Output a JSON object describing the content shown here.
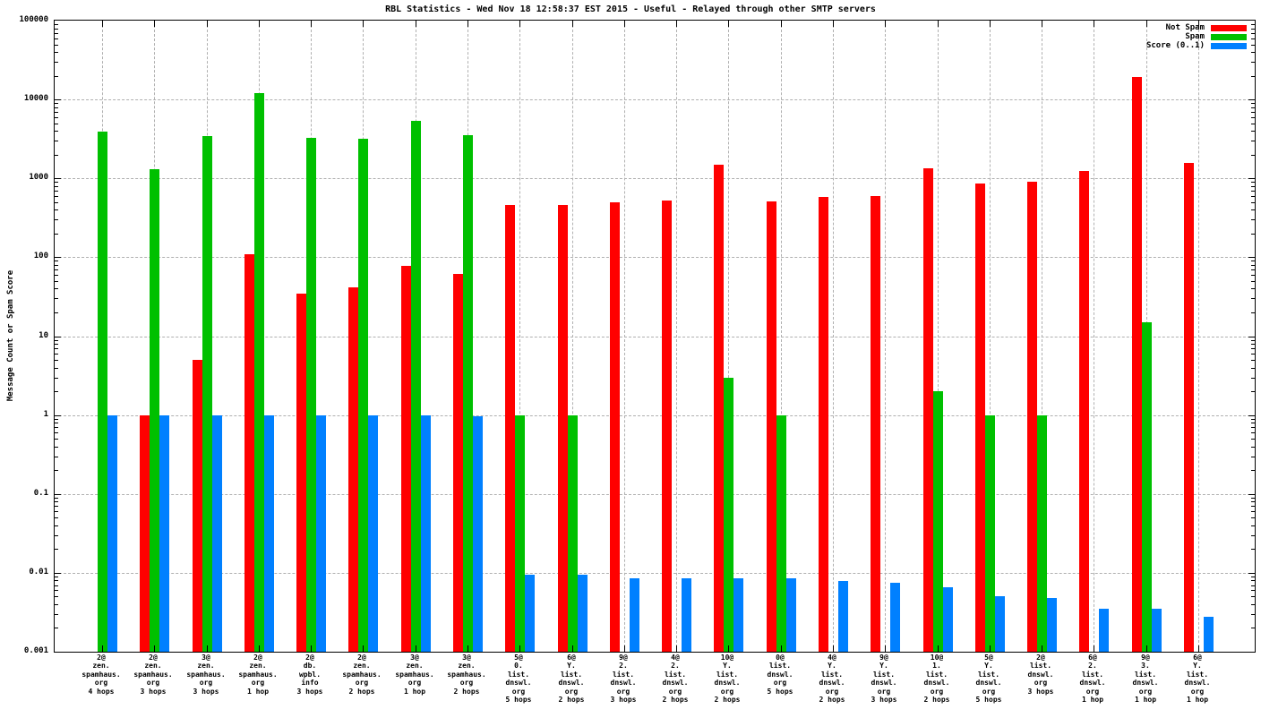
{
  "title": "RBL Statistics - Wed Nov 18 12:58:37 EST 2015 - Useful - Relayed through other SMTP servers",
  "colors": {
    "not_spam": "#ff0000",
    "spam": "#00c000",
    "score": "#0080ff",
    "grid": "#b0b0b0",
    "frame": "#000000",
    "background": "#ffffff"
  },
  "chart_data": {
    "type": "bar",
    "title": "RBL Statistics - Wed Nov 18 12:58:37 EST 2015 - Useful - Relayed through other SMTP servers",
    "xlabel": "",
    "ylabel": "Message Count or Spam Score",
    "y_scale": "log",
    "ylim": [
      0.001,
      100000
    ],
    "y_tick_labels": [
      "100000",
      "10000",
      "1000",
      "100",
      "10",
      "1",
      "0.1",
      "0.01",
      "0.001"
    ],
    "grid": true,
    "legend_position": "top-right",
    "categories": [
      [
        "2@",
        "zen.",
        "spamhaus.",
        "org",
        "4 hops"
      ],
      [
        "2@",
        "zen.",
        "spamhaus.",
        "org",
        "3 hops"
      ],
      [
        "3@",
        "zen.",
        "spamhaus.",
        "org",
        "3 hops"
      ],
      [
        "2@",
        "zen.",
        "spamhaus.",
        "org",
        "1 hop"
      ],
      [
        "2@",
        "db.",
        "wpbl.",
        "info",
        "3 hops"
      ],
      [
        "2@",
        "zen.",
        "spamhaus.",
        "org",
        "2 hops"
      ],
      [
        "3@",
        "zen.",
        "spamhaus.",
        "org",
        "1 hop"
      ],
      [
        "3@",
        "zen.",
        "spamhaus.",
        "org",
        "2 hops"
      ],
      [
        "5@",
        "0.",
        "list.",
        "dnswl.",
        "org",
        "5 hops"
      ],
      [
        "6@",
        "Y.",
        "list.",
        "dnswl.",
        "org",
        "2 hops"
      ],
      [
        "9@",
        "2.",
        "list.",
        "dnswl.",
        "org",
        "3 hops"
      ],
      [
        "4@",
        "2.",
        "list.",
        "dnswl.",
        "org",
        "2 hops"
      ],
      [
        "10@",
        "Y.",
        "list.",
        "dnswl.",
        "org",
        "2 hops"
      ],
      [
        "0@",
        "list.",
        "dnswl.",
        "org",
        "5 hops"
      ],
      [
        "4@",
        "Y.",
        "list.",
        "dnswl.",
        "org",
        "2 hops"
      ],
      [
        "9@",
        "Y.",
        "list.",
        "dnswl.",
        "org",
        "3 hops"
      ],
      [
        "10@",
        "1.",
        "list.",
        "dnswl.",
        "org",
        "2 hops"
      ],
      [
        "5@",
        "Y.",
        "list.",
        "dnswl.",
        "org",
        "5 hops"
      ],
      [
        "2@",
        "list.",
        "dnswl.",
        "org",
        "3 hops"
      ],
      [
        "6@",
        "2.",
        "list.",
        "dnswl.",
        "org",
        "1 hop"
      ],
      [
        "9@",
        "3.",
        "list.",
        "dnswl.",
        "org",
        "1 hop"
      ],
      [
        "6@",
        "Y.",
        "list.",
        "dnswl.",
        "org",
        "1 hop"
      ]
    ],
    "series": [
      {
        "name": "Not Spam",
        "color": "#ff0000",
        "values": [
          0,
          1,
          5,
          110,
          35,
          42,
          78,
          62,
          460,
          465,
          500,
          520,
          1500,
          510,
          575,
          590,
          1350,
          850,
          900,
          1250,
          19500,
          1550
        ]
      },
      {
        "name": "Spam",
        "color": "#00c000",
        "values": [
          3900,
          1300,
          3400,
          12000,
          3300,
          3200,
          5400,
          3500,
          1,
          1,
          0,
          0,
          3,
          1,
          0,
          0,
          2,
          1,
          1,
          0,
          15,
          0
        ]
      },
      {
        "name": "Score (0..1)",
        "color": "#0080ff",
        "values": [
          1,
          1,
          1,
          1,
          1,
          1,
          1,
          0.97,
          0.0095,
          0.0095,
          0.0085,
          0.0085,
          0.0085,
          0.0085,
          0.0078,
          0.0075,
          0.0065,
          0.005,
          0.0048,
          0.0035,
          0.0035,
          0.0028
        ]
      }
    ]
  }
}
